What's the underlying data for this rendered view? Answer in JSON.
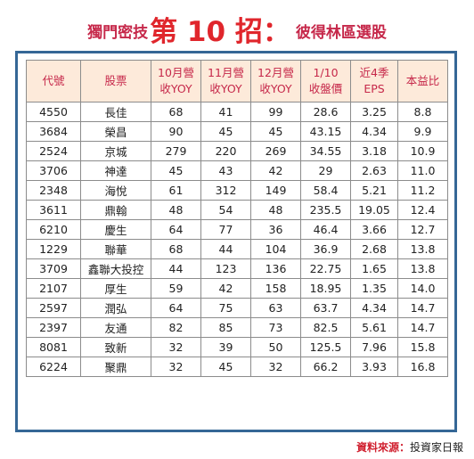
{
  "title": {
    "prefix": "獨門密技",
    "highlight": "第 10 招：",
    "suffix": "彼得林區選股"
  },
  "table": {
    "headers": [
      [
        "代號"
      ],
      [
        "股票"
      ],
      [
        "10月營",
        "收YOY"
      ],
      [
        "11月營",
        "收YOY"
      ],
      [
        "12月營",
        "收YOY"
      ],
      [
        "1/10",
        "收盤價"
      ],
      [
        "近4季",
        "EPS"
      ],
      [
        "本益比"
      ]
    ],
    "rows": [
      [
        "4550",
        "長佳",
        "68",
        "41",
        "99",
        "28.6",
        "3.25",
        "8.8"
      ],
      [
        "3684",
        "榮昌",
        "90",
        "45",
        "45",
        "43.15",
        "4.34",
        "9.9"
      ],
      [
        "2524",
        "京城",
        "279",
        "220",
        "269",
        "34.55",
        "3.18",
        "10.9"
      ],
      [
        "3706",
        "神達",
        "45",
        "43",
        "42",
        "29",
        "2.63",
        "11.0"
      ],
      [
        "2348",
        "海悅",
        "61",
        "312",
        "149",
        "58.4",
        "5.21",
        "11.2"
      ],
      [
        "3611",
        "鼎翰",
        "48",
        "54",
        "48",
        "235.5",
        "19.05",
        "12.4"
      ],
      [
        "6210",
        "慶生",
        "64",
        "77",
        "36",
        "46.4",
        "3.66",
        "12.7"
      ],
      [
        "1229",
        "聯華",
        "68",
        "44",
        "104",
        "36.9",
        "2.68",
        "13.8"
      ],
      [
        "3709",
        "鑫聯大投控",
        "44",
        "123",
        "136",
        "22.75",
        "1.65",
        "13.8"
      ],
      [
        "2107",
        "厚生",
        "59",
        "42",
        "158",
        "18.95",
        "1.35",
        "14.0"
      ],
      [
        "2597",
        "潤弘",
        "64",
        "75",
        "63",
        "63.7",
        "4.34",
        "14.7"
      ],
      [
        "2397",
        "友通",
        "82",
        "85",
        "73",
        "82.5",
        "5.61",
        "14.7"
      ],
      [
        "8081",
        "致新",
        "32",
        "39",
        "50",
        "125.5",
        "7.96",
        "15.8"
      ],
      [
        "6224",
        "聚鼎",
        "32",
        "45",
        "32",
        "66.2",
        "3.93",
        "16.8"
      ]
    ]
  },
  "source": {
    "label": "資料來源：",
    "value": "投資家日報"
  },
  "colors": {
    "title": "#c6284a",
    "title_highlight": "#e0262c",
    "frame_border": "#356796",
    "header_bg": "#fdeada",
    "header_text": "#c6284a"
  }
}
